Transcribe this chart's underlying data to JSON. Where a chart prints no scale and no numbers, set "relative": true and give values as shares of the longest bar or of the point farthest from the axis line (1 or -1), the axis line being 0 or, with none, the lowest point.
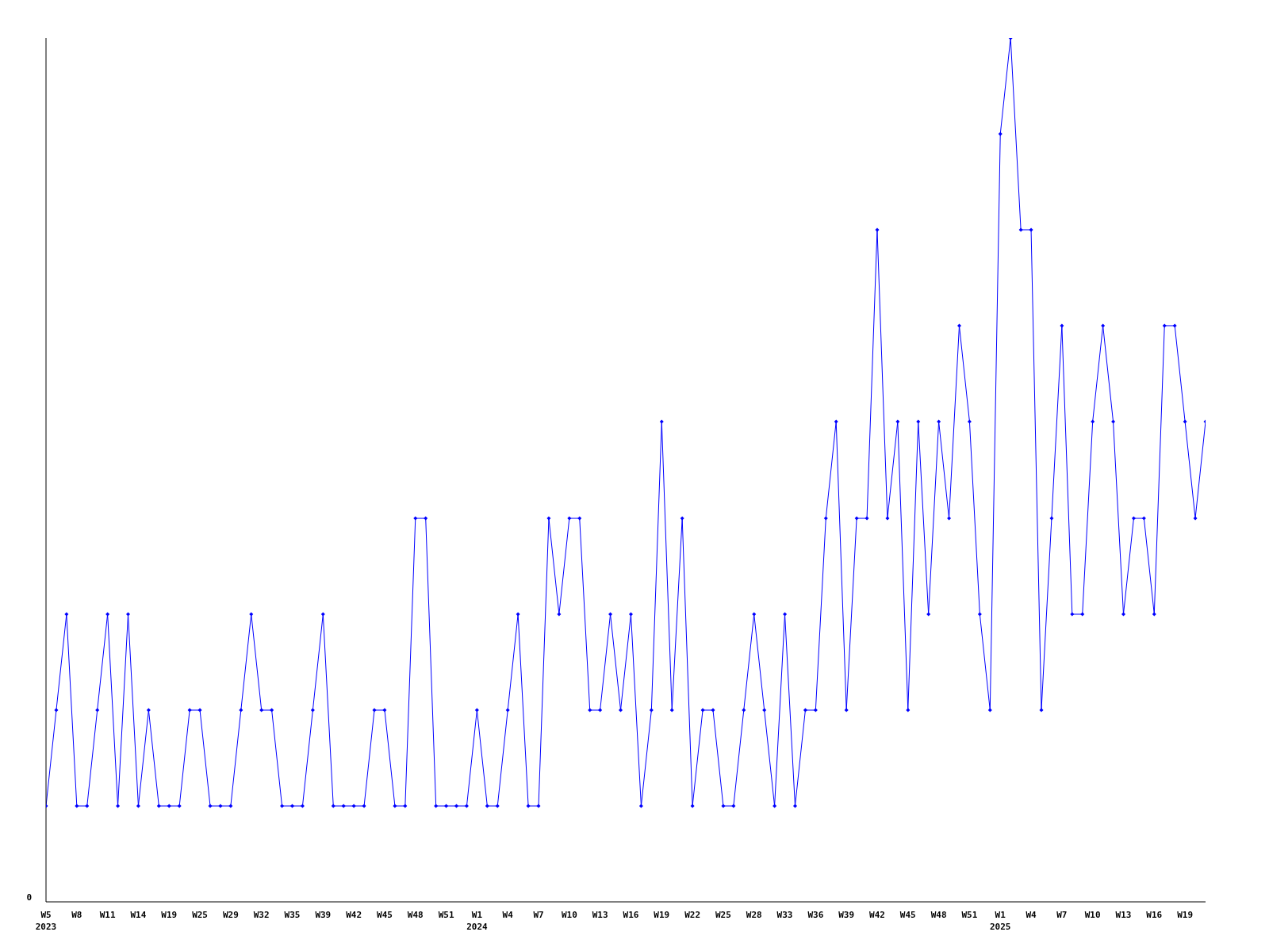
{
  "chart_data": {
    "type": "line",
    "relative": true,
    "categories": [
      "W5\n2023",
      null,
      null,
      "W8",
      null,
      null,
      "W11",
      null,
      null,
      "W14",
      null,
      null,
      "W19",
      null,
      null,
      "W25",
      null,
      null,
      "W29",
      null,
      null,
      "W32",
      null,
      null,
      "W35",
      null,
      null,
      "W39",
      null,
      null,
      "W42",
      null,
      null,
      "W45",
      null,
      null,
      "W48",
      null,
      null,
      "W51",
      null,
      null,
      "W1\n2024",
      null,
      null,
      "W4",
      null,
      null,
      "W7",
      null,
      null,
      "W10",
      null,
      null,
      "W13",
      null,
      null,
      "W16",
      null,
      null,
      "W19",
      null,
      null,
      "W22",
      null,
      null,
      "W25",
      null,
      null,
      "W28",
      null,
      null,
      "W33",
      null,
      null,
      "W36",
      null,
      null,
      "W39",
      null,
      null,
      "W42",
      null,
      null,
      "W45",
      null,
      null,
      "W48",
      null,
      null,
      "W51",
      null,
      null,
      "W1\n2025",
      null,
      null,
      "W4",
      null,
      null,
      "W7",
      null,
      null,
      "W10",
      null,
      null,
      "W13",
      null,
      null,
      "W16",
      null,
      null,
      "W19",
      null,
      null
    ],
    "series": [
      {
        "color": "#0000ff",
        "values": [
          0.111,
          0.222,
          0.333,
          0.111,
          0.111,
          0.222,
          0.333,
          0.111,
          0.333,
          0.111,
          0.222,
          0.111,
          0.111,
          0.111,
          0.222,
          0.222,
          0.111,
          0.111,
          0.111,
          0.222,
          0.333,
          0.222,
          0.222,
          0.111,
          0.111,
          0.111,
          0.222,
          0.333,
          0.111,
          0.111,
          0.111,
          0.111,
          0.222,
          0.222,
          0.111,
          0.111,
          0.444,
          0.444,
          0.111,
          0.111,
          0.111,
          0.111,
          0.222,
          0.111,
          0.111,
          0.222,
          0.333,
          0.111,
          0.111,
          0.444,
          0.333,
          0.444,
          0.444,
          0.222,
          0.222,
          0.333,
          0.222,
          0.333,
          0.111,
          0.222,
          0.556,
          0.222,
          0.444,
          0.111,
          0.222,
          0.222,
          0.111,
          0.111,
          0.222,
          0.333,
          0.222,
          0.111,
          0.333,
          0.111,
          0.222,
          0.222,
          0.444,
          0.556,
          0.222,
          0.444,
          0.444,
          0.778,
          0.444,
          0.556,
          0.222,
          0.556,
          0.333,
          0.556,
          0.444,
          0.667,
          0.556,
          0.333,
          0.222,
          0.889,
          1,
          0.778,
          0.778,
          0.222,
          0.444,
          0.667,
          0.333,
          0.333,
          0.556,
          0.667,
          0.556,
          0.333,
          0.444,
          0.444,
          0.333,
          0.667,
          0.667,
          0.556,
          0.444,
          0.556
        ]
      }
    ],
    "annotations": [
      "0"
    ],
    "marker": "diamond",
    "grid": false
  }
}
